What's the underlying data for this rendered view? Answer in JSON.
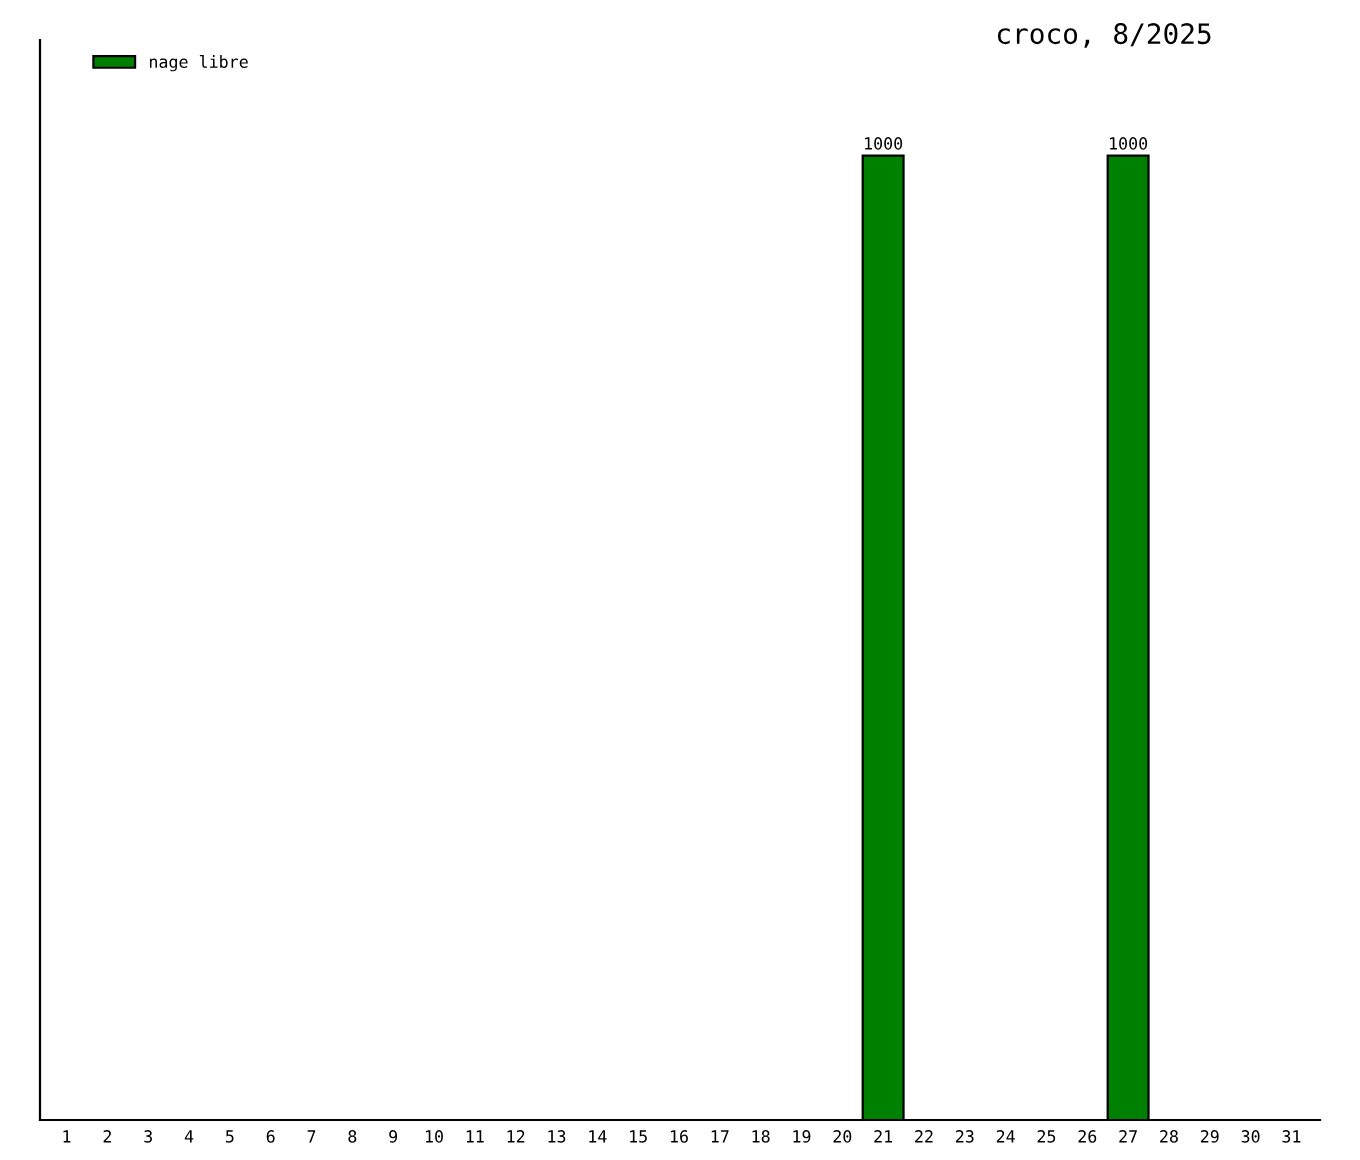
{
  "chart_data": {
    "type": "bar",
    "title": "croco, 8/2025",
    "categories": [
      "1",
      "2",
      "3",
      "4",
      "5",
      "6",
      "7",
      "8",
      "9",
      "10",
      "11",
      "12",
      "13",
      "14",
      "15",
      "16",
      "17",
      "18",
      "19",
      "20",
      "21",
      "22",
      "23",
      "24",
      "25",
      "26",
      "27",
      "28",
      "29",
      "30",
      "31"
    ],
    "series": [
      {
        "name": "nage libre",
        "color": "#008000",
        "values": [
          null,
          null,
          null,
          null,
          null,
          null,
          null,
          null,
          null,
          null,
          null,
          null,
          null,
          null,
          null,
          null,
          null,
          null,
          null,
          null,
          1000,
          null,
          null,
          null,
          null,
          null,
          1000,
          null,
          null,
          null,
          null
        ]
      }
    ],
    "data_labels": true,
    "ylim": [
      0,
      1120
    ],
    "tick_labels": "x",
    "legend": "top left",
    "grid": false
  }
}
